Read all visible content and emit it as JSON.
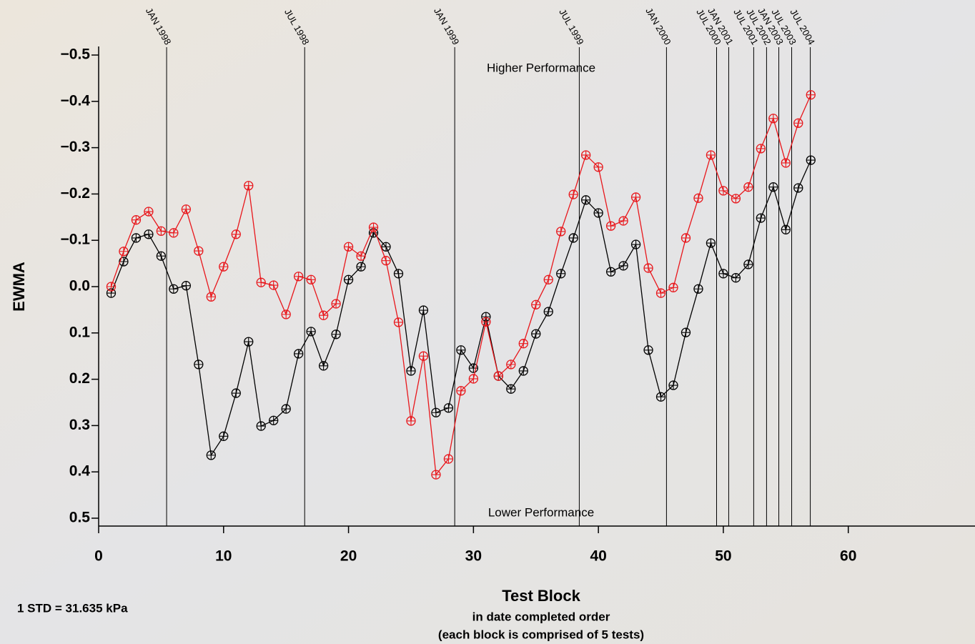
{
  "chart_data": {
    "type": "line",
    "x_label": "Test Block",
    "x_sublabel": "in date completed order",
    "x_sublabel2": "(each block is comprised of 5 tests)",
    "y_label": "EWMA",
    "annotation_top": "Higher Performance",
    "annotation_bottom": "Lower Performance",
    "footnote": "1 STD = 31.635 kPa",
    "xlim": [
      0,
      70
    ],
    "xticks": [
      0,
      10,
      20,
      30,
      40,
      50,
      60
    ],
    "ylim": [
      -0.5,
      0.5
    ],
    "y_inverted": true,
    "yticks": [
      {
        "value": -0.5,
        "label": "−0.5"
      },
      {
        "value": -0.4,
        "label": "−0.4"
      },
      {
        "value": -0.3,
        "label": "−0.3"
      },
      {
        "value": -0.2,
        "label": "−0.2"
      },
      {
        "value": -0.1,
        "label": "−0.1"
      },
      {
        "value": 0,
        "label": "0.0"
      },
      0.1,
      0.2,
      0.3,
      0.4,
      0.5
    ],
    "x": [
      1,
      2,
      3,
      4,
      5,
      6,
      7,
      8,
      9,
      10,
      11,
      12,
      13,
      14,
      15,
      16,
      17,
      18,
      19,
      20,
      21,
      22,
      23,
      24,
      25,
      26,
      27,
      28,
      29,
      30,
      31,
      32,
      33,
      34,
      35,
      36,
      37,
      38,
      39,
      40,
      41,
      42,
      43,
      44,
      45,
      46,
      47,
      48,
      49,
      50,
      51,
      52,
      53,
      54,
      55,
      56,
      57
    ],
    "series": [
      {
        "color": "#e8161b",
        "values": [
          0.0,
          -0.076,
          -0.144,
          -0.162,
          -0.12,
          -0.116,
          -0.167,
          -0.077,
          0.022,
          -0.043,
          -0.113,
          -0.218,
          -0.009,
          -0.003,
          0.06,
          -0.022,
          -0.015,
          0.062,
          0.037,
          -0.086,
          -0.066,
          -0.128,
          -0.056,
          0.077,
          0.29,
          0.15,
          0.406,
          0.372,
          0.225,
          0.199,
          0.076,
          0.193,
          0.168,
          0.123,
          0.039,
          -0.015,
          -0.119,
          -0.199,
          -0.284,
          -0.258,
          -0.131,
          -0.142,
          -0.193,
          -0.04,
          0.014,
          0.002,
          -0.105,
          -0.191,
          -0.284,
          -0.207,
          -0.19,
          -0.215,
          -0.298,
          -0.363,
          -0.267,
          -0.353,
          -0.414
        ]
      },
      {
        "color": "#000000",
        "values": [
          0.014,
          -0.054,
          -0.105,
          -0.113,
          -0.066,
          0.005,
          -0.002,
          0.168,
          0.364,
          0.323,
          0.23,
          0.119,
          0.301,
          0.289,
          0.264,
          0.145,
          0.097,
          0.171,
          0.103,
          -0.015,
          -0.043,
          -0.116,
          -0.086,
          -0.028,
          0.182,
          0.051,
          0.272,
          0.262,
          0.137,
          0.176,
          0.065,
          0.193,
          0.221,
          0.182,
          0.102,
          0.054,
          -0.028,
          -0.105,
          -0.187,
          -0.159,
          -0.032,
          -0.045,
          -0.091,
          0.137,
          0.238,
          0.213,
          0.099,
          0.005,
          -0.094,
          -0.028,
          -0.019,
          -0.048,
          -0.148,
          -0.215,
          -0.123,
          -0.213,
          -0.273
        ]
      }
    ],
    "date_lines": [
      {
        "x": 5.44,
        "label": "JAN 1998"
      },
      {
        "x": 16.49,
        "label": "JUL 1998"
      },
      {
        "x": 28.5,
        "label": "JAN 1999"
      },
      {
        "x": 38.47,
        "label": "JUL 1999"
      },
      {
        "x": 45.45,
        "label": "JAN 2000"
      },
      {
        "x": 49.46,
        "label": "JUL 2000"
      },
      {
        "x": 50.43,
        "label": "JAN 2001"
      },
      {
        "x": 52.43,
        "label": "JUL 2001"
      },
      {
        "x": 53.46,
        "label": "JUL 2002"
      },
      {
        "x": 54.44,
        "label": "JAN 2003"
      },
      {
        "x": 55.47,
        "label": "JUL 2003"
      },
      {
        "x": 56.96,
        "label": "JUL 2004"
      }
    ]
  }
}
